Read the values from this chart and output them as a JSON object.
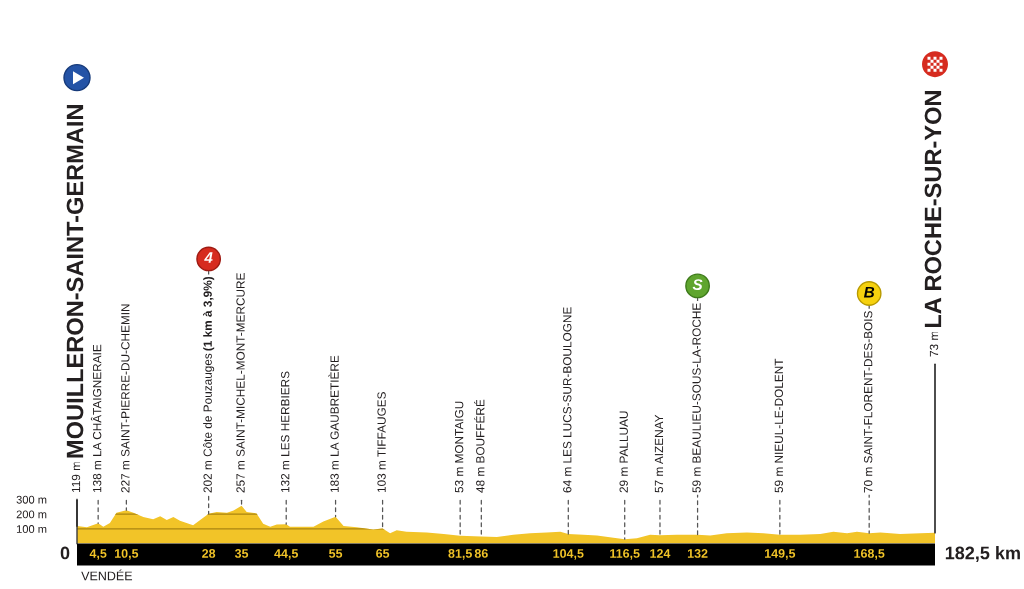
{
  "chart_data": {
    "type": "area",
    "series": [
      {
        "color": "#f2c428",
        "x": [
          0,
          2.1,
          4.5,
          5.6,
          7,
          8.4,
          10.5,
          12,
          14.1,
          16.2,
          17.7,
          19.1,
          20.5,
          21.9,
          24.7,
          26.2,
          28,
          29.7,
          31.9,
          33.3,
          35,
          36.1,
          38.2,
          39.6,
          41.1,
          42.5,
          44.5,
          45.3,
          50.3,
          52.4,
          55,
          56.7,
          59.5,
          63,
          65,
          66.6,
          68,
          70.1,
          74.4,
          78,
          81.5,
          86,
          89.3,
          92.8,
          96.4,
          99.9,
          102.8,
          104.5,
          107.7,
          110.6,
          114.1,
          116.5,
          119.1,
          121.9,
          124,
          127.6,
          132,
          134.7,
          138.2,
          142.5,
          146,
          149.5,
          153.8,
          158.1,
          160.9,
          163.8,
          165.9,
          168.5,
          170.9,
          175.1,
          179.4,
          182.5
        ],
        "values": [
          119,
          110,
          138,
          115,
          140,
          210,
          227,
          210,
          180,
          165,
          185,
          160,
          180,
          155,
          125,
          160,
          202,
          215,
          210,
          225,
          257,
          215,
          205,
          135,
          115,
          130,
          132,
          115,
          115,
          150,
          183,
          120,
          110,
          95,
          103,
          70,
          90,
          80,
          75,
          65,
          53,
          48,
          45,
          60,
          70,
          75,
          80,
          64,
          60,
          55,
          40,
          29,
          35,
          60,
          57,
          60,
          59,
          55,
          70,
          75,
          70,
          59,
          60,
          65,
          80,
          70,
          80,
          70,
          75,
          65,
          70,
          73
        ]
      }
    ],
    "xlim": [
      0,
      182.5
    ],
    "xticks": [
      {
        "value": 4.5,
        "label": "4,5"
      },
      {
        "value": 10.5,
        "label": "10,5"
      },
      28,
      35,
      {
        "value": 44.5,
        "label": "44,5"
      },
      55,
      65,
      {
        "value": 81.5,
        "label": "81,5"
      },
      86,
      {
        "value": 104.5,
        "label": "104,5"
      },
      {
        "value": 116.5,
        "label": "116,5"
      },
      124,
      132,
      {
        "value": 149.5,
        "label": "149,5"
      },
      {
        "value": 168.5,
        "label": "168,5"
      }
    ],
    "ylim": [
      0,
      300
    ],
    "yticks": [
      {
        "value": 100,
        "label": "100 m"
      },
      {
        "value": 200,
        "label": "200 m"
      },
      {
        "value": 300,
        "label": "300 m"
      }
    ],
    "grid": "y",
    "annotations": [
      {
        "text": "119 m MOUILLERON-SAINT-GERMAIN",
        "x": 0,
        "y": 119
      },
      {
        "text": "138 m LA CHÂTAIGNERAIE",
        "x": 4.5,
        "y": 138
      },
      {
        "text": "227 m SAINT-PIERRE-DU-CHEMIN",
        "x": 10.5,
        "y": 227
      },
      {
        "text": "202 m Côte de Pouzauges (1 km à 3,9%)",
        "x": 28,
        "y": 202
      },
      {
        "text": "257 m SAINT-MICHEL-MONT-MERCURE",
        "x": 35,
        "y": 257
      },
      {
        "text": "132 m LES HERBIERS",
        "x": 44.5,
        "y": 132
      },
      {
        "text": "183 m LA GAUBRETIÈRE",
        "x": 55,
        "y": 183
      },
      {
        "text": "103 m TIFFAUGES",
        "x": 65,
        "y": 103
      },
      {
        "text": "53 m MONTAIGU",
        "x": 81.5,
        "y": 53
      },
      {
        "text": "48 m BOUFFÉRÉ",
        "x": 86,
        "y": 48
      },
      {
        "text": "64 m LES LUCS-SUR-BOULOGNE",
        "x": 104.5,
        "y": 64
      },
      {
        "text": "29 m PALLUAU",
        "x": 116.5,
        "y": 29
      },
      {
        "text": "57 m AIZENAY",
        "x": 124,
        "y": 57
      },
      {
        "text": "59 m BEAULIEU-SOUS-LA-ROCHE",
        "x": 132,
        "y": 59
      },
      {
        "text": "59 m NIEUL-LE-DOLENT",
        "x": 149.5,
        "y": 59
      },
      {
        "text": "70 m SAINT-FLORENT-DES-BOIS",
        "x": 168.5,
        "y": 70
      },
      {
        "text": "73 m LA ROCHE-SUR-YON",
        "x": 182.5,
        "y": 73
      },
      {
        "text": "4",
        "x": 28,
        "y": 202
      },
      {
        "text": "S",
        "x": 132,
        "y": 59
      },
      {
        "text": "B",
        "x": 168.5,
        "y": 70
      },
      {
        "text": "0",
        "x": 0,
        "y": 0
      },
      {
        "text": "182,5 km",
        "x": 182.5,
        "y": 0
      },
      "VENDÉE"
    ]
  }
}
